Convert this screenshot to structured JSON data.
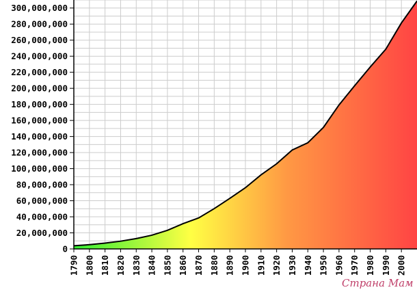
{
  "chart_data": {
    "type": "area",
    "title": "",
    "xlabel": "",
    "ylabel": "",
    "x": [
      1790,
      1800,
      1810,
      1820,
      1830,
      1840,
      1850,
      1860,
      1870,
      1880,
      1890,
      1900,
      1910,
      1920,
      1930,
      1940,
      1950,
      1960,
      1970,
      1980,
      1990,
      2000,
      2010
    ],
    "series": [
      {
        "values": [
          3929214,
          5308483,
          7239881,
          9638453,
          12866020,
          17069453,
          23191876,
          31443321,
          38558371,
          50189209,
          62979766,
          76212168,
          92228496,
          106021537,
          123202624,
          132164569,
          151325798,
          179323175,
          203211926,
          226545805,
          248709873,
          281421906,
          308745538
        ]
      }
    ],
    "xlim": [
      1790,
      2010
    ],
    "ylim": [
      0,
      310000000
    ],
    "x_tick_labels": [
      "1790",
      "1800",
      "1810",
      "1820",
      "1830",
      "1840",
      "1850",
      "1860",
      "1870",
      "1880",
      "1890",
      "1900",
      "1910",
      "1920",
      "1930",
      "1940",
      "1950",
      "1960",
      "1970",
      "1980",
      "1990",
      "2000"
    ],
    "y_tick_labels": [
      "0",
      "20,000,000",
      "40,000,000",
      "60,000,000",
      "80,000,000",
      "100,000,000",
      "120,000,000",
      "140,000,000",
      "160,000,000",
      "180,000,000",
      "200,000,000",
      "220,000,000",
      "240,000,000",
      "260,000,000",
      "280,000,000",
      "300,000,000"
    ],
    "y_tick_values": [
      0,
      20000000,
      40000000,
      60000000,
      80000000,
      100000000,
      120000000,
      140000000,
      160000000,
      180000000,
      200000000,
      220000000,
      240000000,
      260000000,
      280000000,
      300000000
    ],
    "grid": true,
    "fill_gradient": [
      "#33ee33",
      "#ffff44",
      "#ff9944",
      "#ff4444"
    ],
    "line_color": "#000000",
    "grid_color": "#cccccc"
  },
  "watermark": {
    "text": "Страна Мам"
  }
}
